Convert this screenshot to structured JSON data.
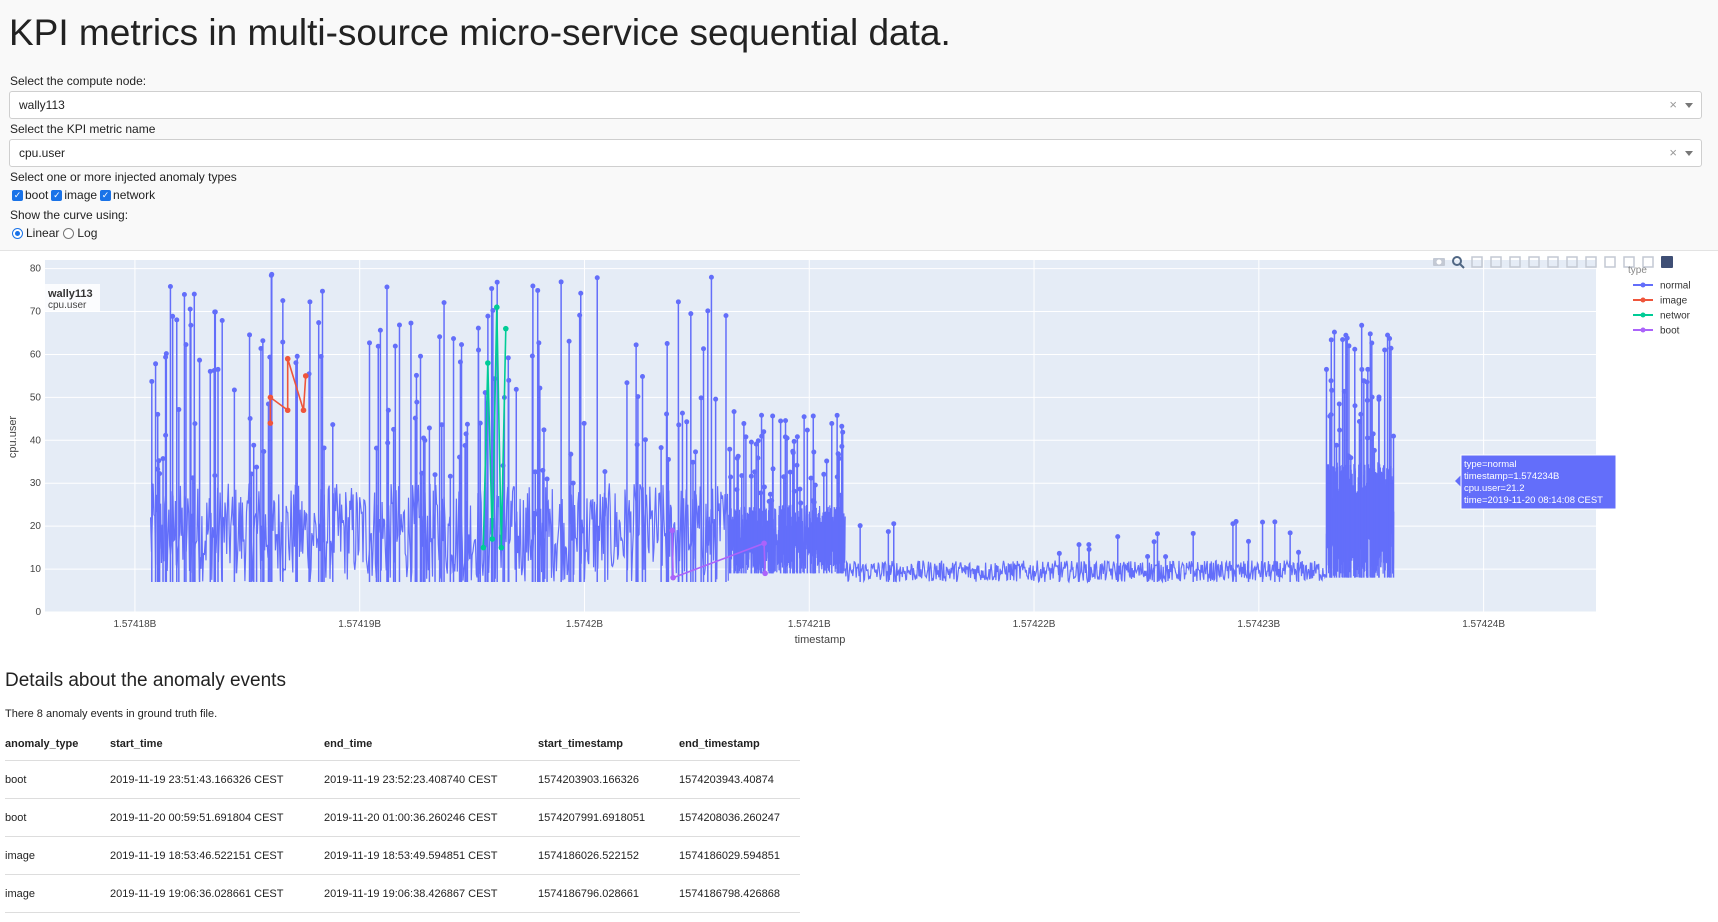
{
  "page": {
    "title": "KPI metrics in multi-source micro-service sequential data."
  },
  "controls": {
    "node_label": "Select the compute node:",
    "node_value": "wally113",
    "metric_label": "Select the KPI metric name",
    "metric_value": "cpu.user",
    "anomaly_label": "Select one or more injected anomaly types",
    "anomaly_options": [
      "boot",
      "image",
      "network"
    ],
    "curve_label": "Show the curve using:",
    "curve_options": [
      "Linear",
      "Log"
    ],
    "curve_selected": "Linear",
    "clear_symbol": "×"
  },
  "chart_data": {
    "type": "line",
    "annotation_title": "wally113",
    "annotation_sub": "cpu.user",
    "xlabel": "timestamp",
    "ylabel": "cpu.user",
    "xlim": [
      1574176000,
      1574245000
    ],
    "ylim": [
      0,
      82
    ],
    "x_ticks": [
      "1.57418B",
      "1.57419B",
      "1.5742B",
      "1.57421B",
      "1.57422B",
      "1.57423B",
      "1.57424B"
    ],
    "x_tick_values": [
      1574180000,
      1574190000,
      1574200000,
      1574210000,
      1574220000,
      1574230000,
      1574240000
    ],
    "y_ticks": [
      0,
      10,
      20,
      30,
      40,
      50,
      60,
      70,
      80
    ],
    "legend_title": "type",
    "legend_placement": "top-right",
    "series": [
      {
        "name": "normal",
        "color": "#636efa",
        "segments": [
          {
            "x0": 1574180700,
            "x1": 1574206400,
            "base": [
              7,
              30
            ],
            "spikes": 140,
            "spike_max": 80
          },
          {
            "x0": 1574206400,
            "x1": 1574211600,
            "base": [
              9,
              25
            ],
            "spikes": 60,
            "spike_max": 47
          },
          {
            "x0": 1574211600,
            "x1": 1574233000,
            "base": [
              7,
              12
            ],
            "spikes": 20,
            "spike_max": 22
          },
          {
            "x0": 1574233000,
            "x1": 1574236000,
            "base": [
              8,
              35
            ],
            "spikes": 40,
            "spike_max": 67
          }
        ]
      },
      {
        "name": "image",
        "color": "#ef553b",
        "x": [
          1574186026,
          1574186029,
          1574186796,
          1574186798,
          1574187500,
          1574187600
        ],
        "y": [
          44,
          50,
          47,
          59,
          47,
          55
        ]
      },
      {
        "name": "networ",
        "color": "#00cc96",
        "x": [
          1574195500,
          1574195700,
          1574195900,
          1574196100,
          1574196300,
          1574196500
        ],
        "y": [
          15,
          58,
          17,
          71,
          15,
          66
        ]
      },
      {
        "name": "boot",
        "color": "#ab63fa",
        "x": [
          1574203903,
          1574203943,
          1574207991,
          1574208036
        ],
        "y": [
          19,
          8,
          16,
          9
        ]
      }
    ],
    "hover": {
      "lines": [
        "type=normal",
        "timestamp=1.574234B",
        "cpu.user=21.2",
        "time=2019-11-20 08:14:08 CEST"
      ]
    }
  },
  "details": {
    "title": "Details about the anomaly events",
    "count_text": "There 8 anomaly events in ground truth file.",
    "columns": [
      "anomaly_type",
      "start_time",
      "end_time",
      "start_timestamp",
      "end_timestamp"
    ],
    "rows": [
      [
        "boot",
        "2019-11-19 23:51:43.166326 CEST",
        "2019-11-19 23:52:23.408740 CEST",
        "1574203903.166326",
        "1574203943.40874"
      ],
      [
        "boot",
        "2019-11-20 00:59:51.691804 CEST",
        "2019-11-20 01:00:36.260246 CEST",
        "1574207991.6918051",
        "1574208036.260247"
      ],
      [
        "image",
        "2019-11-19 18:53:46.522151 CEST",
        "2019-11-19 18:53:49.594851 CEST",
        "1574186026.522152",
        "1574186029.594851"
      ],
      [
        "image",
        "2019-11-19 19:06:36.028661 CEST",
        "2019-11-19 19:06:38.426867 CEST",
        "1574186796.028661",
        "1574186798.426868"
      ]
    ]
  }
}
